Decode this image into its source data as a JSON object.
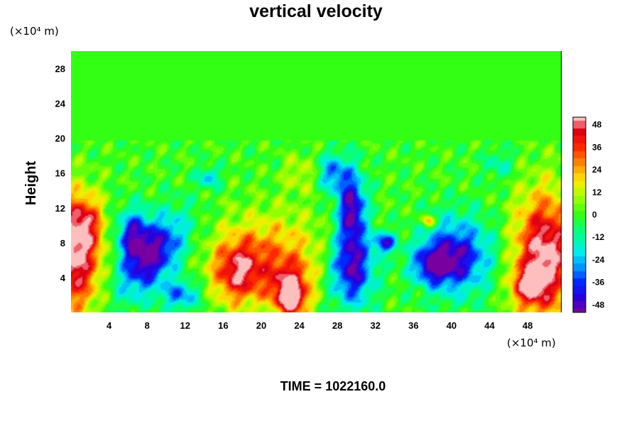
{
  "chart_data": {
    "type": "heatmap",
    "title": "vertical velocity",
    "ylabel": "Height",
    "x_unit": "(×10⁴ m)",
    "y_unit": "(×10⁴ m)",
    "x_ticks": [
      4,
      8,
      12,
      16,
      20,
      24,
      28,
      32,
      36,
      40,
      44,
      48
    ],
    "y_ticks": [
      4,
      8,
      12,
      16,
      20,
      24,
      28
    ],
    "xlim": [
      0,
      51.5
    ],
    "ylim": [
      0,
      30
    ],
    "grid": false,
    "colorbar": {
      "ticks": [
        -48,
        -36,
        -24,
        -12,
        0,
        12,
        24,
        36,
        48
      ],
      "range": [
        -52,
        52
      ]
    },
    "features": [
      {
        "x": 0.3,
        "y": 6.5,
        "sx": 2.0,
        "sy": 4.5,
        "v": 54
      },
      {
        "x": 1.5,
        "y": 10.5,
        "sx": 1.2,
        "sy": 2.0,
        "v": 22
      },
      {
        "x": 8.5,
        "y": 6.5,
        "sx": 1.8,
        "sy": 3.5,
        "v": -50,
        "rot": 0.55
      },
      {
        "x": 6.5,
        "y": 9.0,
        "sx": 1.2,
        "sy": 2.0,
        "v": -38
      },
      {
        "x": 11.5,
        "y": 2.0,
        "sx": 1.4,
        "sy": 1.2,
        "v": -30
      },
      {
        "x": 17.5,
        "y": 4.5,
        "sx": 1.8,
        "sy": 2.5,
        "v": 36
      },
      {
        "x": 21.0,
        "y": 6.5,
        "sx": 4.0,
        "sy": 3.5,
        "v": 26
      },
      {
        "x": 23.0,
        "y": 2.5,
        "sx": 1.4,
        "sy": 2.0,
        "v": 44
      },
      {
        "x": 23.3,
        "y": 1.2,
        "sx": 0.9,
        "sy": 1.0,
        "v": 22
      },
      {
        "x": 29.5,
        "y": 5.0,
        "sx": 1.6,
        "sy": 3.0,
        "v": -48
      },
      {
        "x": 29.5,
        "y": 12.0,
        "sx": 1.0,
        "sy": 3.0,
        "v": -50
      },
      {
        "x": 27.5,
        "y": 16.0,
        "sx": 1.0,
        "sy": 1.5,
        "v": -30
      },
      {
        "x": 33.0,
        "y": 8.0,
        "sx": 0.8,
        "sy": 0.8,
        "v": -40
      },
      {
        "x": 40.5,
        "y": 6.5,
        "sx": 2.5,
        "sy": 3.0,
        "v": -44
      },
      {
        "x": 38.0,
        "y": 5.5,
        "sx": 1.5,
        "sy": 1.5,
        "v": -36
      },
      {
        "x": 49.8,
        "y": 6.5,
        "sx": 2.2,
        "sy": 5.0,
        "v": 55
      },
      {
        "x": 48.0,
        "y": 3.0,
        "sx": 1.2,
        "sy": 1.5,
        "v": 30
      },
      {
        "x": 14.5,
        "y": 15.5,
        "sx": 0.8,
        "sy": 0.8,
        "v": -24
      },
      {
        "x": 37.5,
        "y": 10.5,
        "sx": 0.5,
        "sy": 0.5,
        "v": 30
      },
      {
        "x": 24.0,
        "y": 16.0,
        "sx": 1.2,
        "sy": 1.5,
        "v": 12
      },
      {
        "x": 45.0,
        "y": 17.0,
        "sx": 1.0,
        "sy": 1.2,
        "v": -14
      }
    ],
    "texture_amplitude": 7,
    "texture_top": 19.8
  },
  "footer": {
    "time_label": "TIME = 1022160.0"
  }
}
